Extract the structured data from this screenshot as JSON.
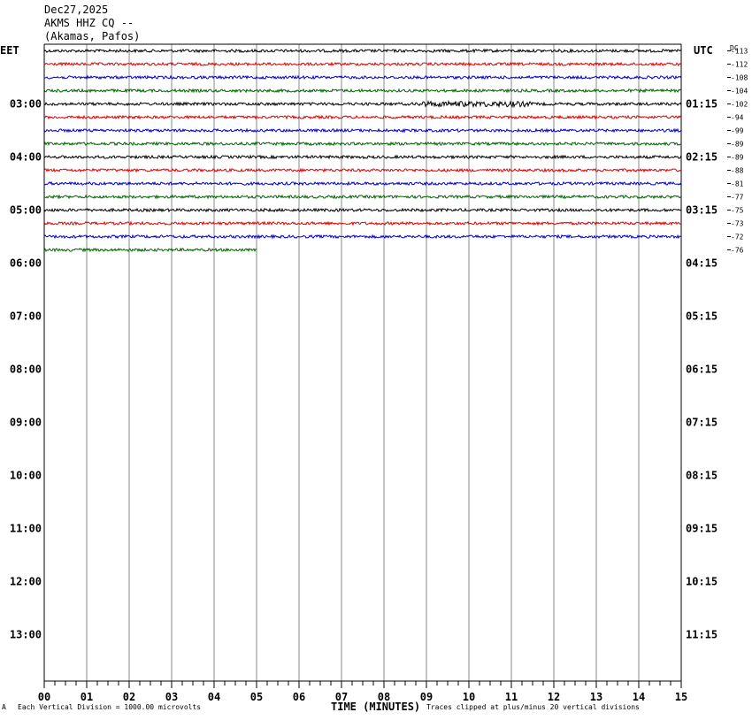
{
  "header": {
    "date": "Dec27,2025",
    "station": "AKMS HHZ CQ --",
    "location": "(Akamas, Pafos)"
  },
  "left_tz": "EET",
  "right_tz": "UTC",
  "dc_label": "DC",
  "footer": {
    "corner_mark": "A",
    "vertical_division": "Each Vertical Division = 1000.00 microvolts",
    "xlabel": "TIME (MINUTES)",
    "clip_note": "Traces clipped at plus/minus 20 vertical divisions"
  },
  "chart_data": {
    "type": "line",
    "title": "",
    "xlabel": "TIME (MINUTES)",
    "ylabel": "",
    "xlim": [
      0,
      15
    ],
    "x_ticks": [
      "00",
      "01",
      "02",
      "03",
      "04",
      "05",
      "06",
      "07",
      "08",
      "09",
      "10",
      "11",
      "12",
      "13",
      "14",
      "15"
    ],
    "left_hour_labels": [
      "03:00",
      "04:00",
      "05:00",
      "06:00",
      "07:00",
      "08:00",
      "09:00",
      "10:00",
      "11:00",
      "12:00",
      "13:00"
    ],
    "right_hour_labels": [
      "01:15",
      "02:15",
      "03:15",
      "04:15",
      "05:15",
      "06:15",
      "07:15",
      "08:15",
      "09:15",
      "10:15",
      "11:15"
    ],
    "trace_colors": [
      "#000000",
      "#e00000",
      "#0000cc",
      "#006600"
    ],
    "traces": [
      {
        "dc": "-113",
        "end_minute": 15
      },
      {
        "dc": "-112",
        "end_minute": 15
      },
      {
        "dc": "-108",
        "end_minute": 15
      },
      {
        "dc": "-104",
        "end_minute": 15
      },
      {
        "dc": "-102",
        "end_minute": 15
      },
      {
        "dc": "-94",
        "end_minute": 15
      },
      {
        "dc": "-99",
        "end_minute": 15
      },
      {
        "dc": "-89",
        "end_minute": 15
      },
      {
        "dc": "-89",
        "end_minute": 15
      },
      {
        "dc": "-88",
        "end_minute": 15
      },
      {
        "dc": "-81",
        "end_minute": 15
      },
      {
        "dc": "-77",
        "end_minute": 15
      },
      {
        "dc": "-75",
        "end_minute": 15
      },
      {
        "dc": "-73",
        "end_minute": 15
      },
      {
        "dc": "-72",
        "end_minute": 15
      },
      {
        "dc": "-76",
        "end_minute": 5
      }
    ]
  }
}
